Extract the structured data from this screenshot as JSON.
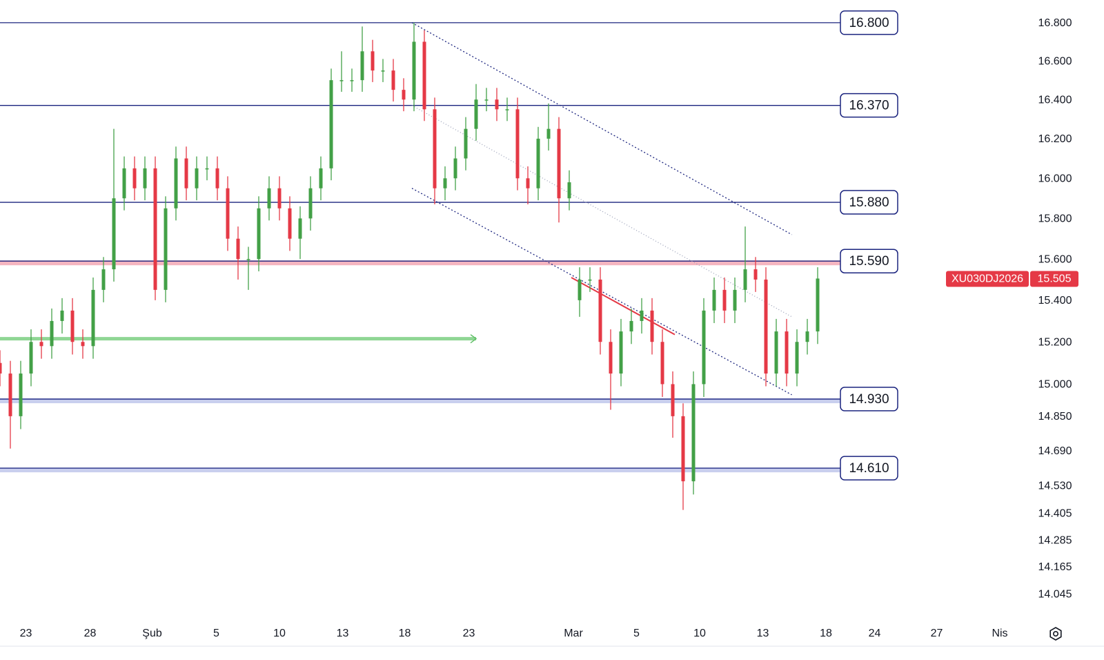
{
  "chart_data": {
    "type": "candlestick",
    "symbol": "XU030DJ2026",
    "log_scale": true,
    "up_color": "#43a047",
    "down_color": "#e53946",
    "level_color": "#1a237e",
    "xlim": [
      0,
      100
    ],
    "ylim": [
      13.94,
      16.92
    ],
    "x": [
      0,
      1,
      2,
      3,
      4,
      5,
      6,
      7,
      8,
      9,
      10,
      11,
      12,
      13,
      14,
      15,
      16,
      17,
      18,
      19,
      20,
      21,
      22,
      23,
      24,
      25,
      26,
      27,
      28,
      29,
      30,
      31,
      32,
      33,
      34,
      35,
      36,
      37,
      38,
      39,
      40,
      41,
      42,
      43,
      44,
      45,
      46,
      47,
      48,
      49,
      50,
      51,
      52,
      53,
      54,
      55,
      56,
      57,
      58,
      59,
      60,
      61,
      62,
      63,
      64,
      65,
      66,
      67,
      68,
      69,
      70,
      71,
      72,
      73,
      74,
      75,
      76,
      77,
      78,
      79
    ],
    "open": [
      15.1,
      15.05,
      14.85,
      15.05,
      15.2,
      15.18,
      15.3,
      15.35,
      15.2,
      15.18,
      15.45,
      15.55,
      15.9,
      16.05,
      15.95,
      16.05,
      15.45,
      15.85,
      16.1,
      15.95,
      16.05,
      16.05,
      15.95,
      15.7,
      15.6,
      15.6,
      15.85,
      15.95,
      15.85,
      15.7,
      15.8,
      15.95,
      16.05,
      16.5,
      16.5,
      16.5,
      16.65,
      16.55,
      16.55,
      16.45,
      16.4,
      16.7,
      16.35,
      15.95,
      16.0,
      16.1,
      16.25,
      16.4,
      16.4,
      16.35,
      16.35,
      16.0,
      15.95,
      16.2,
      16.25,
      15.9,
      15.4,
      15.5,
      15.5,
      15.2,
      15.05,
      15.25,
      15.3,
      15.35,
      15.2,
      15.0,
      14.85,
      14.55,
      15.0,
      15.35,
      15.45,
      15.35,
      15.45,
      15.55,
      15.5,
      15.05,
      15.25,
      15.05,
      15.2,
      15.25
    ],
    "high": [
      15.16,
      15.11,
      15.11,
      15.26,
      15.26,
      15.36,
      15.41,
      15.41,
      15.26,
      15.51,
      15.61,
      16.25,
      16.11,
      16.11,
      16.11,
      16.11,
      15.91,
      16.16,
      16.16,
      16.11,
      16.11,
      16.11,
      16.01,
      15.76,
      15.66,
      15.91,
      16.01,
      16.01,
      15.91,
      15.86,
      16.01,
      16.11,
      16.56,
      16.65,
      16.56,
      16.78,
      16.71,
      16.61,
      16.61,
      16.51,
      16.8,
      16.76,
      16.41,
      16.06,
      16.16,
      16.31,
      16.48,
      16.46,
      16.46,
      16.41,
      16.41,
      16.06,
      16.26,
      16.38,
      16.31,
      16.04,
      15.56,
      15.56,
      15.56,
      15.26,
      15.31,
      15.36,
      15.41,
      15.41,
      15.26,
      15.06,
      14.91,
      15.06,
      15.41,
      15.51,
      15.51,
      15.51,
      15.76,
      15.61,
      15.56,
      15.31,
      15.31,
      15.26,
      15.31,
      15.56
    ],
    "low": [
      14.99,
      14.7,
      14.79,
      14.99,
      15.12,
      15.12,
      15.24,
      15.14,
      15.12,
      15.12,
      15.39,
      15.49,
      15.84,
      15.89,
      15.89,
      15.4,
      15.39,
      15.79,
      15.89,
      15.89,
      15.99,
      15.89,
      15.64,
      15.5,
      15.45,
      15.54,
      15.79,
      15.79,
      15.64,
      15.6,
      15.74,
      15.89,
      15.99,
      16.44,
      16.44,
      16.44,
      16.49,
      16.49,
      16.39,
      16.34,
      16.34,
      16.29,
      15.87,
      15.89,
      15.94,
      16.04,
      16.19,
      16.34,
      16.29,
      16.29,
      15.94,
      15.87,
      15.89,
      16.14,
      15.78,
      15.84,
      15.32,
      15.44,
      15.14,
      14.88,
      14.99,
      15.19,
      15.24,
      15.14,
      14.94,
      14.75,
      14.42,
      14.49,
      14.94,
      15.29,
      15.29,
      15.29,
      15.39,
      15.44,
      14.99,
      14.99,
      14.99,
      14.99,
      15.14,
      15.19
    ],
    "close": [
      15.05,
      14.85,
      15.05,
      15.2,
      15.18,
      15.3,
      15.35,
      15.2,
      15.18,
      15.45,
      15.55,
      15.9,
      16.05,
      15.95,
      16.05,
      15.45,
      15.85,
      16.1,
      15.95,
      16.05,
      16.05,
      15.95,
      15.7,
      15.6,
      15.6,
      15.85,
      15.95,
      15.85,
      15.7,
      15.8,
      15.95,
      16.05,
      16.5,
      16.5,
      16.5,
      16.65,
      16.55,
      16.55,
      16.45,
      16.4,
      16.7,
      16.35,
      15.95,
      16.0,
      16.1,
      16.25,
      16.4,
      16.4,
      16.35,
      16.35,
      16.0,
      15.95,
      16.2,
      16.25,
      15.9,
      15.98,
      15.5,
      15.5,
      15.2,
      15.05,
      15.25,
      15.3,
      15.35,
      15.2,
      15.0,
      14.85,
      14.55,
      15.0,
      15.35,
      15.45,
      15.35,
      15.45,
      15.55,
      15.5,
      15.05,
      15.25,
      15.05,
      15.2,
      15.25,
      15.505
    ],
    "levels": [
      {
        "value": 16.8,
        "label": "16.800"
      },
      {
        "value": 16.37,
        "label": "16.370"
      },
      {
        "value": 15.88,
        "label": "15.880"
      },
      {
        "value": 15.59,
        "label": "15.590",
        "band": "#f5b5c0"
      },
      {
        "value": 14.93,
        "label": "14.930",
        "band": "#c9cfee"
      },
      {
        "value": 14.61,
        "label": "14.610",
        "band": "#c9cfee"
      }
    ],
    "trend_lines": [
      {
        "x": [
          39.8,
          76.5
        ],
        "y": [
          16.8,
          15.72
        ],
        "color": "#1a237e",
        "dash": "2 3"
      },
      {
        "x": [
          39.8,
          76.5
        ],
        "y": [
          16.37,
          15.32
        ],
        "color": "#9aa0b8",
        "dash": "1 3"
      },
      {
        "x": [
          39.8,
          76.5
        ],
        "y": [
          15.95,
          14.95
        ],
        "color": "#1a237e",
        "dash": "2 3"
      },
      {
        "x": [
          55.2,
          65.2
        ],
        "y": [
          15.51,
          15.235
        ],
        "color": "#e53946",
        "dash": "none"
      }
    ],
    "arrow": {
      "x": [
        0,
        46
      ],
      "y": [
        15.215,
        15.215
      ],
      "color": "#8fd694"
    },
    "yticks": [
      {
        "value": 16.8,
        "label": "16.800"
      },
      {
        "value": 16.6,
        "label": "16.600"
      },
      {
        "value": 16.4,
        "label": "16.400"
      },
      {
        "value": 16.2,
        "label": "16.200"
      },
      {
        "value": 16.0,
        "label": "16.000"
      },
      {
        "value": 15.8,
        "label": "15.800"
      },
      {
        "value": 15.6,
        "label": "15.600"
      },
      {
        "value": 15.4,
        "label": "15.400"
      },
      {
        "value": 15.2,
        "label": "15.200"
      },
      {
        "value": 15.0,
        "label": "15.000"
      },
      {
        "value": 14.85,
        "label": "14.850"
      },
      {
        "value": 14.69,
        "label": "14.690"
      },
      {
        "value": 14.53,
        "label": "14.530"
      },
      {
        "value": 14.405,
        "label": "14.405"
      },
      {
        "value": 14.285,
        "label": "14.285"
      },
      {
        "value": 14.165,
        "label": "14.165"
      },
      {
        "value": 14.045,
        "label": "14.045"
      }
    ],
    "xticks": [
      {
        "value": 2.5,
        "label": "23"
      },
      {
        "value": 8.7,
        "label": "28"
      },
      {
        "value": 14.7,
        "label": "Şub"
      },
      {
        "value": 20.9,
        "label": "5"
      },
      {
        "value": 27,
        "label": "10"
      },
      {
        "value": 33.1,
        "label": "13"
      },
      {
        "value": 39.1,
        "label": "18"
      },
      {
        "value": 45.3,
        "label": "23"
      },
      {
        "value": 55.4,
        "label": "Mar"
      },
      {
        "value": 61.5,
        "label": "5"
      },
      {
        "value": 67.6,
        "label": "10"
      },
      {
        "value": 73.7,
        "label": "13"
      },
      {
        "value": 79.8,
        "label": "18"
      },
      {
        "value": 84.5,
        "label": "24"
      },
      {
        "value": 90.5,
        "label": "27"
      },
      {
        "value": 96.6,
        "label": "Nis"
      }
    ]
  }
}
